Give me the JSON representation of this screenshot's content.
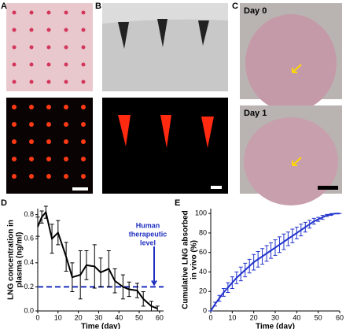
{
  "panels": {
    "a": "A",
    "b": "B",
    "c": "C",
    "d": "D",
    "e": "E"
  },
  "photo_labels": {
    "day0": "Day 0",
    "day1": "Day 1"
  },
  "chart_data": [
    {
      "type": "line",
      "xlabel": "Time (day)",
      "ylabel": [
        "LNG concentration in",
        "plasma (ng/ml)"
      ],
      "x": [
        0,
        2,
        4,
        7,
        10,
        14,
        17,
        21,
        24,
        28,
        31,
        35,
        38,
        42,
        45,
        49,
        52,
        56,
        59
      ],
      "series": [
        {
          "color": "#000000",
          "values": [
            0.7,
            0.78,
            0.82,
            0.6,
            0.65,
            0.45,
            0.28,
            0.3,
            0.38,
            0.37,
            0.32,
            0.35,
            0.25,
            0.2,
            0.18,
            0.17,
            0.1,
            0.04,
            0.02
          ],
          "errors": [
            0.08,
            0.05,
            0.05,
            0.12,
            0.1,
            0.12,
            0.12,
            0.2,
            0.12,
            0.18,
            0.12,
            0.15,
            0.1,
            0.1,
            0.06,
            0.06,
            0.06,
            0.04,
            0.02
          ]
        }
      ],
      "threshold": 0.2,
      "threshold_color": "#1f2fbf",
      "annotation": [
        "Human",
        "therapeutic",
        "level"
      ],
      "xlim": [
        0,
        62
      ],
      "ylim": [
        0,
        0.85
      ],
      "xticks": [
        0,
        10,
        20,
        30,
        40,
        50,
        60
      ],
      "yticks": [
        {
          "value": 0,
          "label": "0.0"
        },
        0.2,
        0.4,
        0.6,
        0.8
      ]
    },
    {
      "type": "line",
      "xlabel": "Time (day)",
      "ylabel": [
        "Cumulative LNG absorbed",
        "in vivo (%)"
      ],
      "x": [
        0,
        2,
        4,
        6,
        8,
        10,
        12,
        14,
        16,
        18,
        20,
        22,
        24,
        26,
        28,
        30,
        32,
        34,
        36,
        38,
        40,
        42,
        44,
        46,
        48,
        50,
        52,
        54,
        56,
        58,
        60
      ],
      "series": [
        {
          "color": "#2233cc",
          "values": [
            0,
            7,
            13,
            19,
            24,
            29,
            34,
            38,
            42,
            46,
            50,
            53,
            56,
            59,
            62,
            65,
            68,
            71,
            74,
            77,
            80,
            83,
            86,
            89,
            92,
            94,
            96,
            98,
            99,
            100,
            100
          ],
          "errors": [
            0,
            2,
            3,
            4,
            5,
            6,
            6,
            7,
            7,
            7,
            8,
            8,
            8,
            8,
            8,
            8,
            8,
            8,
            7,
            7,
            6,
            6,
            5,
            4,
            3,
            2,
            2,
            1,
            1,
            0,
            0
          ]
        }
      ],
      "xlim": [
        0,
        60
      ],
      "ylim": [
        0,
        105
      ],
      "xticks": [
        0,
        10,
        20,
        30,
        40,
        50,
        60
      ],
      "yticks": [
        0,
        20,
        40,
        60,
        80,
        100
      ]
    }
  ]
}
